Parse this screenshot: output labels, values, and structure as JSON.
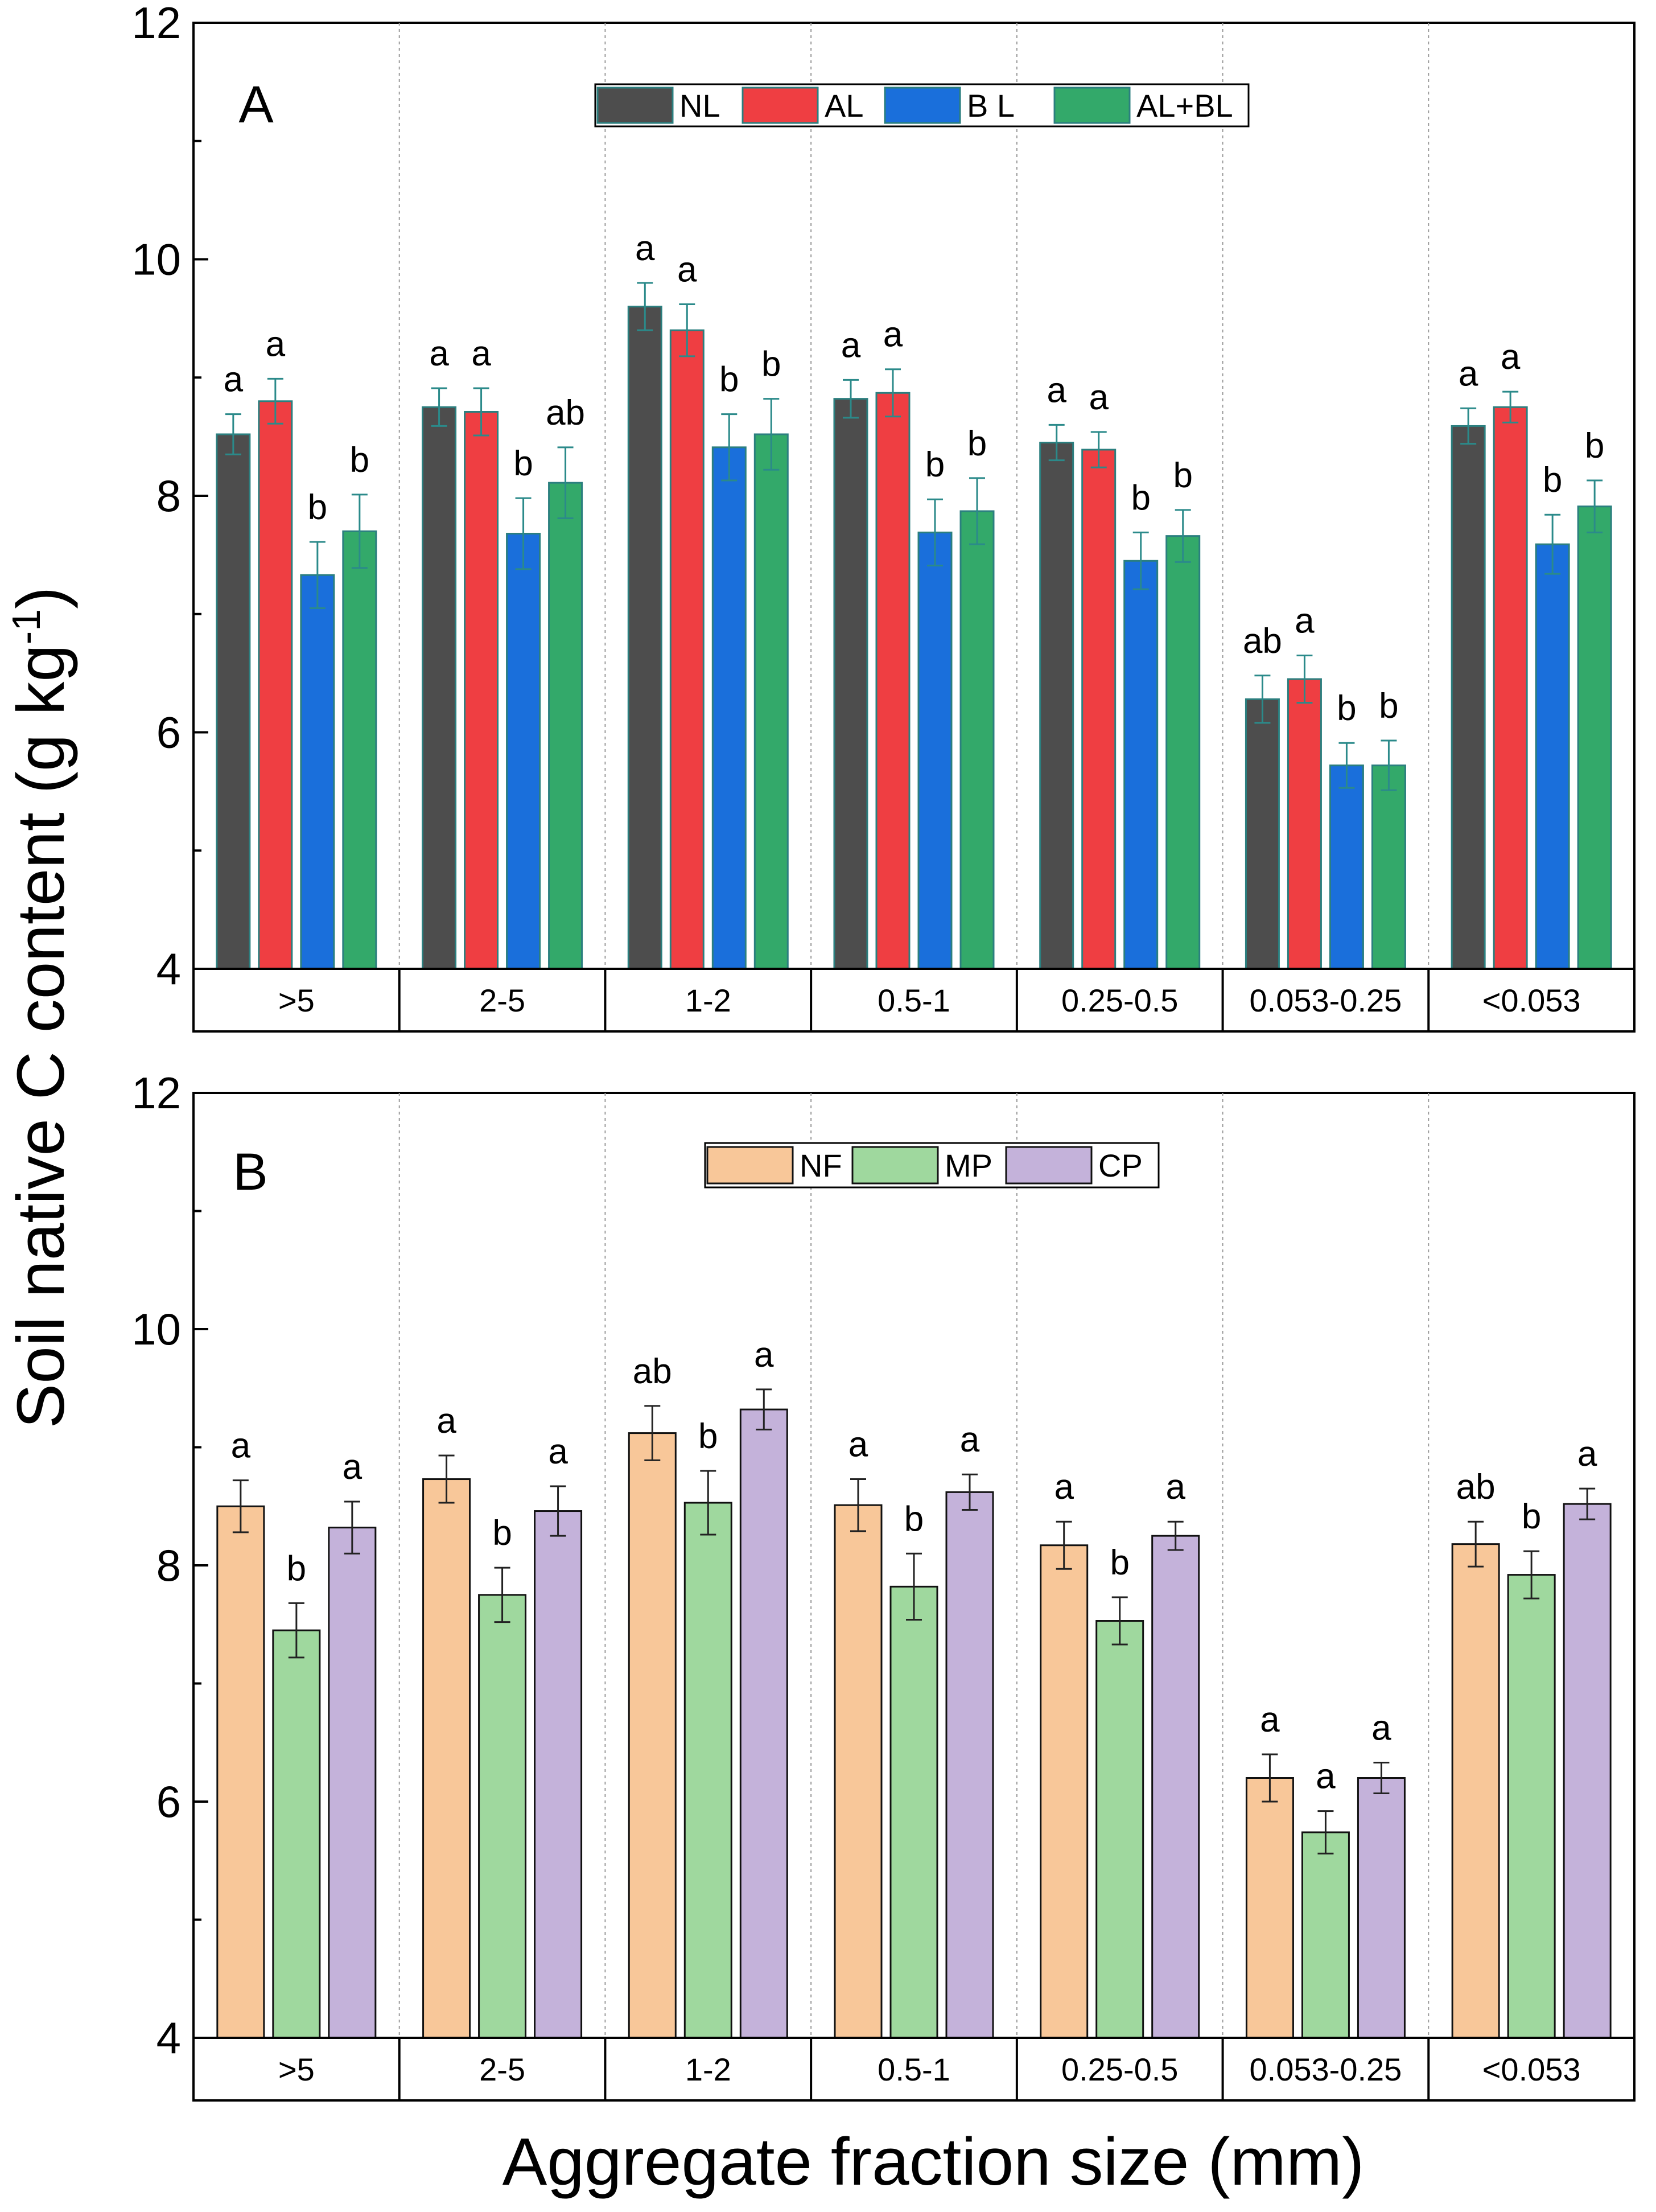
{
  "figure": {
    "ylabel_main": "Soil native C content (g kg",
    "ylabel_sup": "-1",
    "ylabel_close": ")",
    "xlabel": "Aggregate fraction size (mm)"
  },
  "chart_data": [
    {
      "type": "bar",
      "panel_label": "A",
      "categories": [
        ">5",
        "2-5",
        "1-2",
        "0.5-1",
        "0.25-0.5",
        "0.053-0.25",
        "<0.053"
      ],
      "ylim": [
        4,
        12
      ],
      "yticks": [
        4,
        6,
        8,
        10,
        12
      ],
      "grid": false,
      "legend_position": "top-center",
      "series": [
        {
          "name": "NL",
          "color": "#4d4d4d",
          "values": [
            8.52,
            8.75,
            9.6,
            8.82,
            8.45,
            6.28,
            8.59
          ],
          "errors": [
            0.17,
            0.16,
            0.2,
            0.16,
            0.15,
            0.2,
            0.15
          ],
          "letters": [
            "a",
            "a",
            "a",
            "a",
            "a",
            "ab",
            "a"
          ]
        },
        {
          "name": "AL",
          "color": "#ef3e42",
          "values": [
            8.8,
            8.71,
            9.4,
            8.87,
            8.39,
            6.45,
            8.75
          ],
          "errors": [
            0.19,
            0.2,
            0.22,
            0.2,
            0.15,
            0.2,
            0.13
          ],
          "letters": [
            "a",
            "a",
            "a",
            "a",
            "a",
            "a",
            "a"
          ]
        },
        {
          "name": "B L",
          "color": "#1a6fdb",
          "values": [
            7.33,
            7.68,
            8.41,
            7.69,
            7.45,
            5.72,
            7.59
          ],
          "errors": [
            0.28,
            0.3,
            0.28,
            0.28,
            0.24,
            0.19,
            0.25
          ],
          "letters": [
            "b",
            "b",
            "b",
            "b",
            "b",
            "b",
            "b"
          ]
        },
        {
          "name": "AL+BL",
          "color": "#33a96a",
          "values": [
            7.7,
            8.11,
            8.52,
            7.87,
            7.66,
            5.72,
            7.91
          ],
          "errors": [
            0.31,
            0.3,
            0.3,
            0.28,
            0.22,
            0.21,
            0.22
          ],
          "letters": [
            "b",
            "ab",
            "b",
            "b",
            "b",
            "b",
            "b"
          ]
        }
      ]
    },
    {
      "type": "bar",
      "panel_label": "B",
      "categories": [
        ">5",
        "2-5",
        "1-2",
        "0.5-1",
        "0.25-0.5",
        "0.053-0.25",
        "<0.053"
      ],
      "ylim": [
        4,
        12
      ],
      "yticks": [
        4,
        6,
        8,
        10,
        12
      ],
      "grid": false,
      "legend_position": "top-center",
      "series": [
        {
          "name": "NF",
          "color": "#f8c799",
          "values": [
            8.5,
            8.73,
            9.12,
            8.51,
            8.17,
            6.2,
            8.18
          ],
          "errors": [
            0.22,
            0.2,
            0.23,
            0.22,
            0.2,
            0.2,
            0.19
          ],
          "letters": [
            "a",
            "a",
            "ab",
            "a",
            "a",
            "a",
            "ab"
          ]
        },
        {
          "name": "MP",
          "color": "#9fd89e",
          "values": [
            7.45,
            7.75,
            8.53,
            7.82,
            7.53,
            5.74,
            7.92
          ],
          "errors": [
            0.23,
            0.23,
            0.27,
            0.28,
            0.2,
            0.18,
            0.2
          ],
          "letters": [
            "b",
            "b",
            "b",
            "b",
            "b",
            "a",
            "b"
          ]
        },
        {
          "name": "CP",
          "color": "#c4b2da",
          "values": [
            8.32,
            8.46,
            9.32,
            8.62,
            8.25,
            6.2,
            8.52
          ],
          "errors": [
            0.22,
            0.21,
            0.17,
            0.15,
            0.12,
            0.13,
            0.13
          ],
          "letters": [
            "a",
            "a",
            "a",
            "a",
            "a",
            "a",
            "a"
          ]
        }
      ]
    }
  ]
}
